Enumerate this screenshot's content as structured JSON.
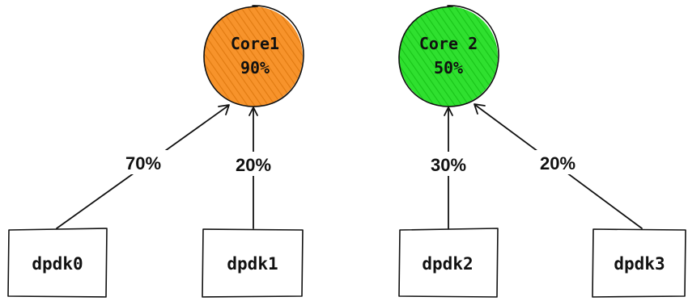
{
  "cores": [
    {
      "id": "core1",
      "name": "Core1",
      "load": "90%",
      "color": "#f7932b"
    },
    {
      "id": "core2",
      "name": "Core 2",
      "load": "50%",
      "color": "#2fe02f"
    }
  ],
  "ports": [
    {
      "id": "dpdk0",
      "label": "dpdk0"
    },
    {
      "id": "dpdk1",
      "label": "dpdk1"
    },
    {
      "id": "dpdk2",
      "label": "dpdk2"
    },
    {
      "id": "dpdk3",
      "label": "dpdk3"
    }
  ],
  "links": [
    {
      "from": "dpdk0",
      "to": "core1",
      "label": "70%"
    },
    {
      "from": "dpdk1",
      "to": "core1",
      "label": "20%"
    },
    {
      "from": "dpdk2",
      "to": "core2",
      "label": "30%"
    },
    {
      "from": "dpdk3",
      "to": "core2",
      "label": "20%"
    }
  ]
}
